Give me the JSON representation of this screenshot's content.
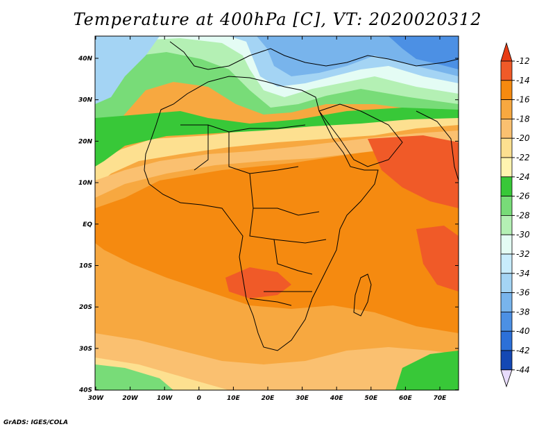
{
  "title": "Temperature at 400hPa [C], VT: 2020020312",
  "credit": "GrADS: IGES/COLA",
  "map": {
    "lon_ticks": [
      "30W",
      "20W",
      "10W",
      "0",
      "10E",
      "20E",
      "30E",
      "40E",
      "50E",
      "60E",
      "70E"
    ],
    "lat_ticks": [
      "40N",
      "30N",
      "20N",
      "10N",
      "EQ",
      "10S",
      "20S",
      "30S",
      "40S"
    ]
  },
  "colorbar": {
    "labels": [
      "-12",
      "-14",
      "-16",
      "-18",
      "-20",
      "-22",
      "-24",
      "-26",
      "-28",
      "-30",
      "-32",
      "-34",
      "-36",
      "-38",
      "-40",
      "-42",
      "-44"
    ],
    "colors": [
      "#f05a28",
      "#f58a10",
      "#f7a840",
      "#fac070",
      "#fde090",
      "#fff4b0",
      "#38c838",
      "#78dc78",
      "#b4f0b4",
      "#e4fcf4",
      "#c8ecfc",
      "#a4d4f4",
      "#78b4ec",
      "#4c90e4",
      "#2c70d8",
      "#1448b4",
      "#102878"
    ],
    "top_arrow_color": "#e83c14",
    "bottom_arrow_color": "#e8dcfc"
  }
}
